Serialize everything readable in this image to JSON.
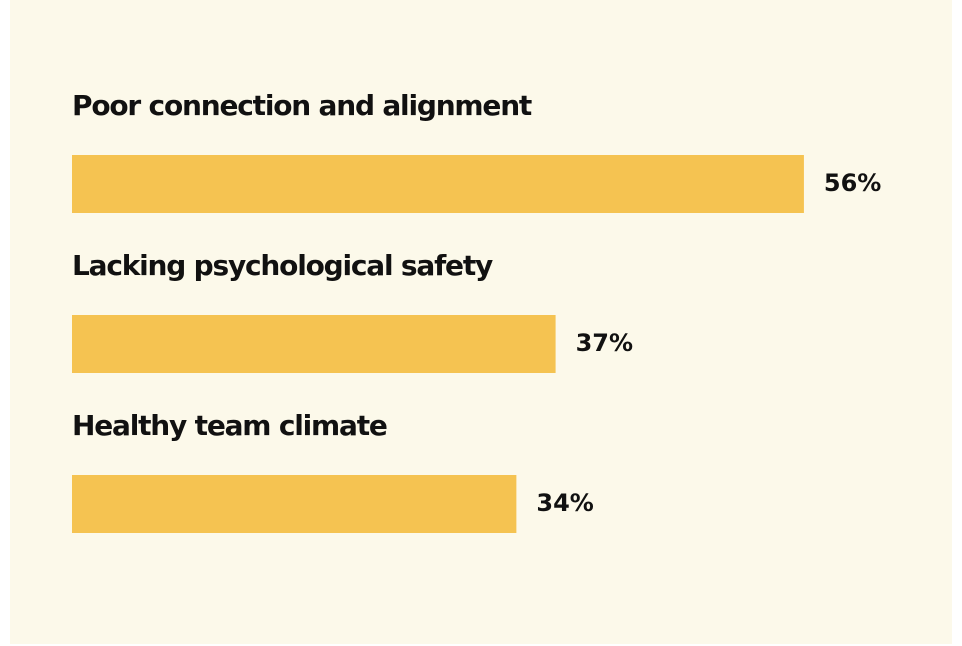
{
  "chart_data": {
    "type": "bar",
    "orientation": "horizontal",
    "categories": [
      "Poor connection and alignment",
      "Lacking psychological safety",
      "Healthy team climate"
    ],
    "values": [
      56,
      37,
      34
    ],
    "value_labels": [
      "56%",
      "37%",
      "34%"
    ],
    "color": "#f5c351"
  }
}
